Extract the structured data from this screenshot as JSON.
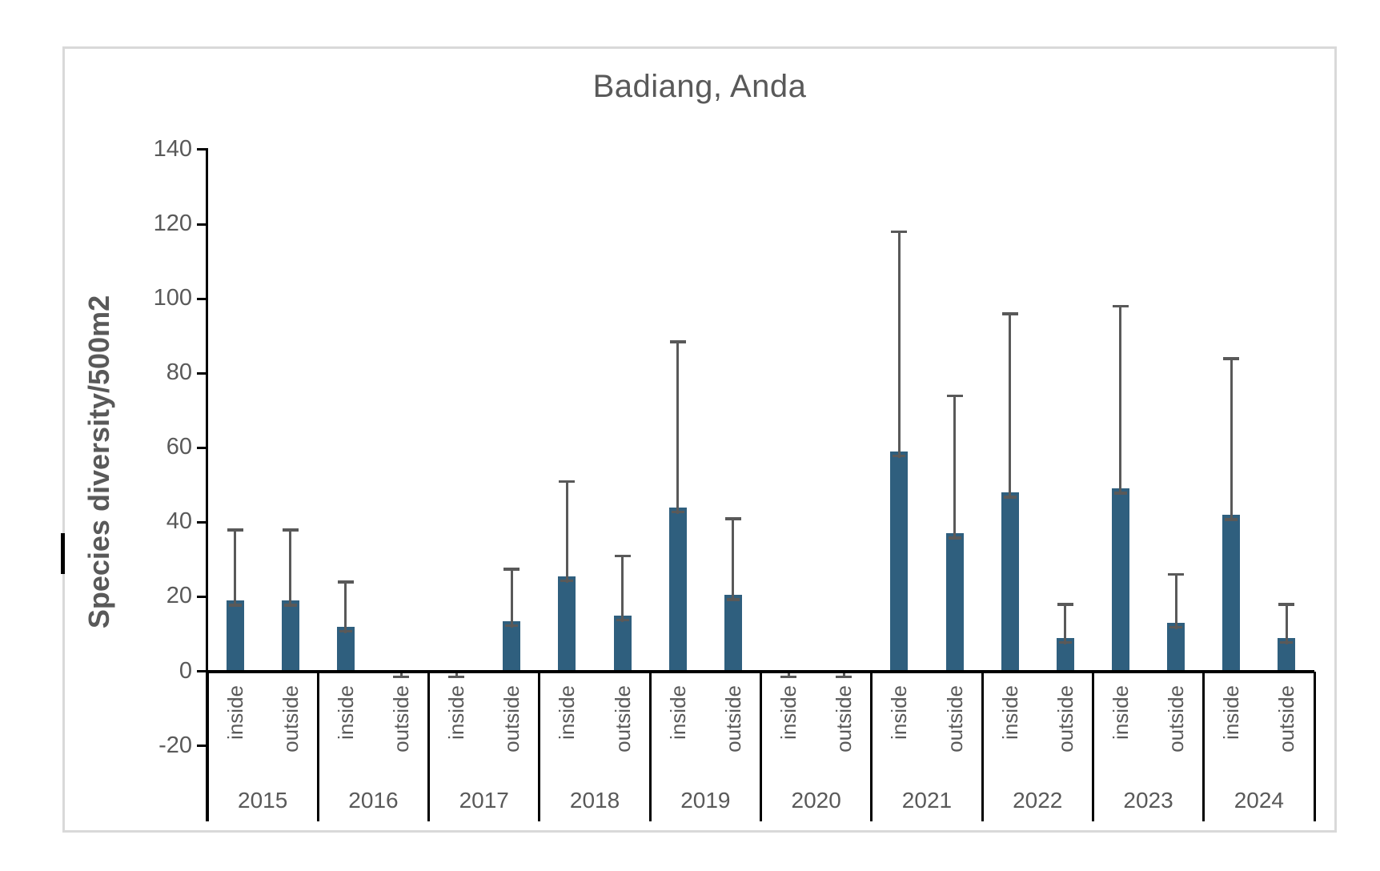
{
  "title": "Badiang, Anda",
  "y_axis_label": "Species diversity/500m2",
  "chart_data": {
    "type": "bar",
    "title": "Badiang, Anda",
    "ylabel": "Species diversity/500m2",
    "xlabel": "",
    "ylim": [
      -20,
      140
    ],
    "y_ticks": [
      140,
      120,
      100,
      80,
      60,
      40,
      20,
      0,
      -20
    ],
    "grid": false,
    "legend": null,
    "categories": [
      "2015",
      "2016",
      "2017",
      "2018",
      "2019",
      "2020",
      "2021",
      "2022",
      "2023",
      "2024"
    ],
    "sub_categories": [
      "inside",
      "outside"
    ],
    "series": [
      {
        "name": "inside",
        "values": [
          19,
          12,
          0,
          25.5,
          44,
          0,
          59,
          48,
          49,
          42
        ],
        "error_top": [
          38,
          24,
          0,
          51,
          88.5,
          0,
          118,
          96,
          98,
          84
        ]
      },
      {
        "name": "outside",
        "values": [
          19,
          0,
          13.5,
          15,
          20.5,
          0,
          37,
          9,
          13,
          9
        ],
        "error_top": [
          38,
          0,
          27.5,
          31,
          41,
          0,
          74,
          18,
          26,
          18
        ]
      }
    ],
    "annotations": "zero-value categories show only a small error-bar cap just below the axis"
  },
  "colors": {
    "bar": "#2F5F7E",
    "error_bar": "#595959",
    "text": "#595959",
    "axis": "#000000",
    "frame_border": "#D9D9D9",
    "background": "#FFFFFF"
  }
}
